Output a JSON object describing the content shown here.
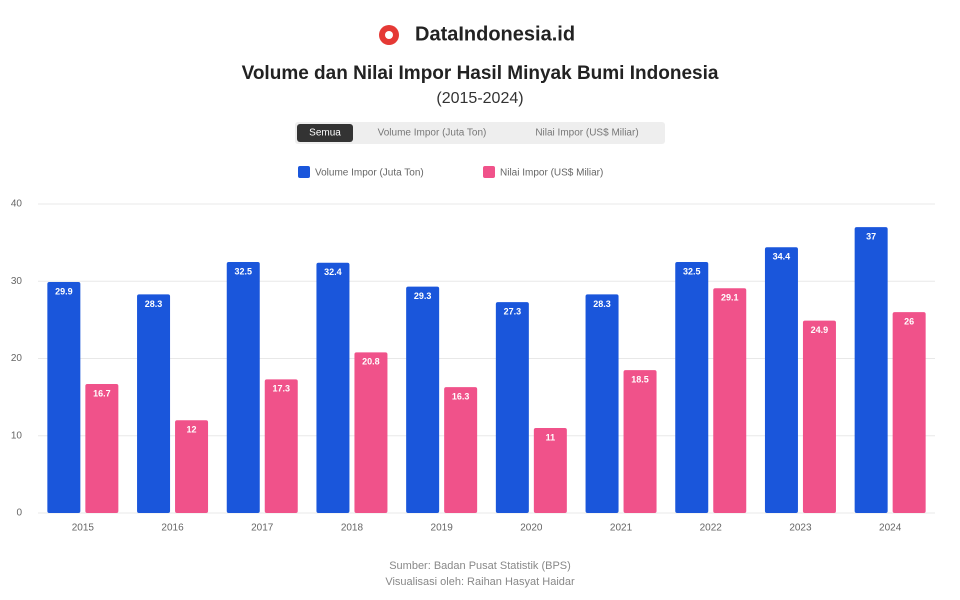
{
  "brand": "DataIndonesia.id",
  "controls": {
    "buttons": [
      "Semua",
      "Volume Impor (Juta Ton)",
      "Nilai Impor (US$ Miliar)"
    ]
  },
  "chart_data": {
    "type": "bar",
    "title": "Volume dan Nilai Impor Hasil Minyak Bumi Indonesia",
    "subtitle": "(2015-2024)",
    "categories": [
      "2015",
      "2016",
      "2017",
      "2018",
      "2019",
      "2020",
      "2021",
      "2022",
      "2023",
      "2024"
    ],
    "series": [
      {
        "name": "Volume Impor (Juta Ton)",
        "color": "#1a56db",
        "values": [
          29.9,
          28.3,
          32.5,
          32.4,
          29.3,
          27.3,
          28.3,
          32.5,
          34.4,
          37.0
        ]
      },
      {
        "name": "Nilai Impor (US$ Miliar)",
        "color": "#f0528a",
        "values": [
          16.7,
          12.0,
          17.3,
          20.8,
          16.3,
          11.0,
          18.5,
          29.1,
          24.9,
          26.0
        ]
      }
    ],
    "ylim": [
      0,
      40
    ],
    "yticks": [
      0,
      10,
      20,
      30,
      40
    ],
    "grid": true
  },
  "footer": {
    "source": "Sumber: Badan Pusat Statistik (BPS)",
    "credit": "Visualisasi oleh: Raihan Hasyat Haidar"
  }
}
